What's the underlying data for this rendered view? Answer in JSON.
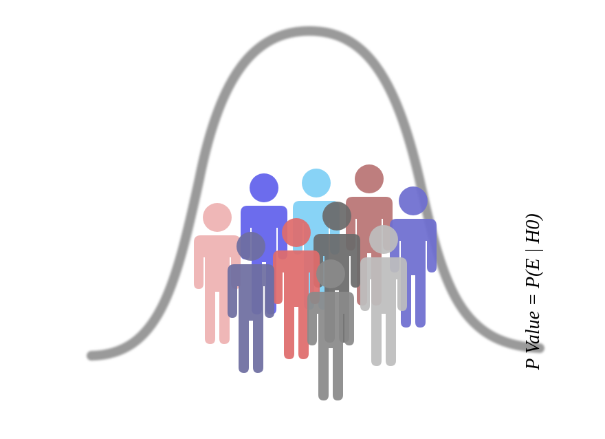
{
  "formula": {
    "text": "P Value = P(E | H0)"
  },
  "colors": {
    "curve": "#9a9a9a",
    "baseline": "#9a9a9a",
    "text": "#000000"
  },
  "people": [
    {
      "name": "person-light-blue",
      "color": "#7fd0f5"
    },
    {
      "name": "person-mauve",
      "color": "#b97474"
    },
    {
      "name": "person-periwinkle",
      "color": "#6e6ed0"
    },
    {
      "name": "person-blue-violet",
      "color": "#6161ec"
    },
    {
      "name": "person-pink",
      "color": "#eeb1b1"
    },
    {
      "name": "person-dark-gray",
      "color": "#6a6a6a"
    },
    {
      "name": "person-salmon",
      "color": "#df6c6c"
    },
    {
      "name": "person-slate",
      "color": "#6e6ea0"
    },
    {
      "name": "person-light-gray",
      "color": "#bdbdbd"
    },
    {
      "name": "person-mid-gray",
      "color": "#8a8a8a"
    }
  ]
}
